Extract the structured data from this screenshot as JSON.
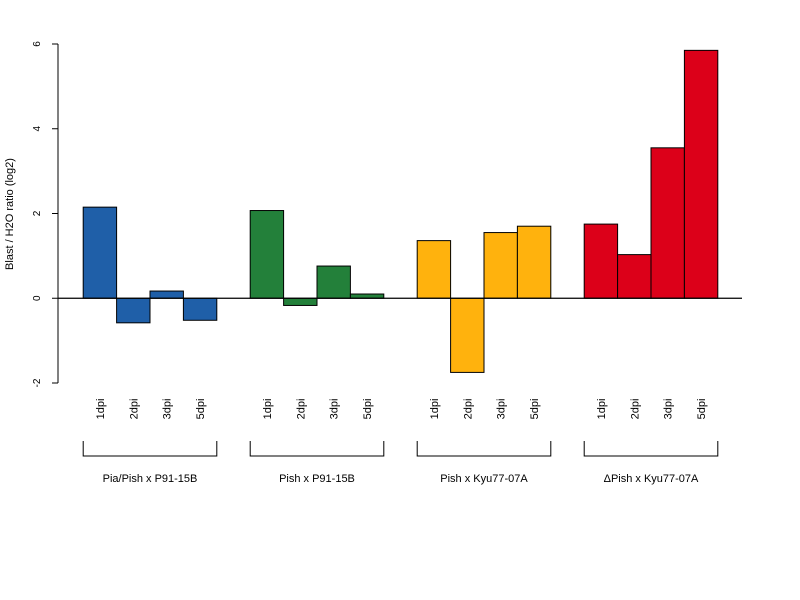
{
  "chart_data": {
    "type": "bar",
    "title": "",
    "xlabel": "",
    "ylabel": "Blast / H2O ratio (log2)",
    "ylim": [
      -2,
      6
    ],
    "yticks": [
      -2,
      0,
      2,
      4,
      6
    ],
    "grid": false,
    "legend": "none",
    "groups": [
      {
        "name": "Pia/Pish x P91-15B",
        "color": "#1f5fa8",
        "categories": [
          "1dpi",
          "2dpi",
          "3dpi",
          "5dpi"
        ],
        "values": [
          2.15,
          -0.58,
          0.17,
          -0.52
        ]
      },
      {
        "name": "Pish x P91-15B",
        "color": "#23803a",
        "categories": [
          "1dpi",
          "2dpi",
          "3dpi",
          "5dpi"
        ],
        "values": [
          2.07,
          -0.17,
          0.76,
          0.1
        ]
      },
      {
        "name": "Pish x Kyu77-07A",
        "color": "#ffb20d",
        "categories": [
          "1dpi",
          "2dpi",
          "3dpi",
          "5dpi"
        ],
        "values": [
          1.36,
          -1.75,
          1.55,
          1.7
        ]
      },
      {
        "name": "ΔPish x Kyu77-07A",
        "color": "#dc0019",
        "categories": [
          "1dpi",
          "2dpi",
          "3dpi",
          "5dpi"
        ],
        "values": [
          1.75,
          1.03,
          3.55,
          5.85
        ]
      }
    ]
  }
}
